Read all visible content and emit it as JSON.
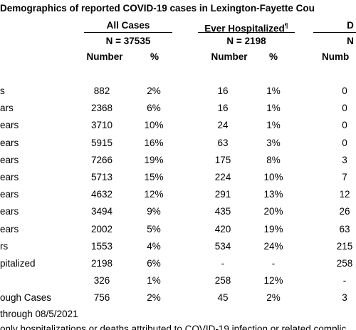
{
  "title": "Demographics of reported COVID-19 cases in Lexington-Fayette Cou",
  "groups": [
    {
      "name": "All Cases",
      "n": "N = 37535",
      "cols": [
        "Number",
        "%"
      ]
    },
    {
      "name": "Ever Hospitalized",
      "mark": "¶",
      "n": "N = 2198",
      "cols": [
        "Number",
        "%"
      ]
    },
    {
      "name": "D",
      "n": "N",
      "cols": [
        "Numb"
      ]
    }
  ],
  "rows": [
    [
      "s",
      "882",
      "2%",
      "16",
      "1%",
      "0"
    ],
    [
      "ars",
      "2368",
      "6%",
      "16",
      "1%",
      "0"
    ],
    [
      "ears",
      "3710",
      "10%",
      "24",
      "1%",
      "0"
    ],
    [
      "ears",
      "5915",
      "16%",
      "63",
      "3%",
      "0"
    ],
    [
      "ears",
      "7266",
      "19%",
      "175",
      "8%",
      "3"
    ],
    [
      "ears",
      "5713",
      "15%",
      "224",
      "10%",
      "7"
    ],
    [
      "ears",
      "4632",
      "12%",
      "291",
      "13%",
      "12"
    ],
    [
      "ears",
      "3494",
      "9%",
      "435",
      "20%",
      "26"
    ],
    [
      "ears",
      "2002",
      "5%",
      "420",
      "19%",
      "63"
    ],
    [
      "rs",
      "1553",
      "4%",
      "534",
      "24%",
      "215"
    ],
    [
      "pitalized",
      "2198",
      "6%",
      "-",
      "-",
      "258"
    ],
    [
      null,
      "326",
      "1%",
      "258",
      "12%",
      "-"
    ],
    [
      "ough Cases",
      "756",
      "2%",
      "45",
      "2%",
      "3"
    ]
  ],
  "footnotes": [
    "through 08/5/2021",
    "only hospitalizations or deaths attributed to COVID-19 infection or related complic"
  ]
}
